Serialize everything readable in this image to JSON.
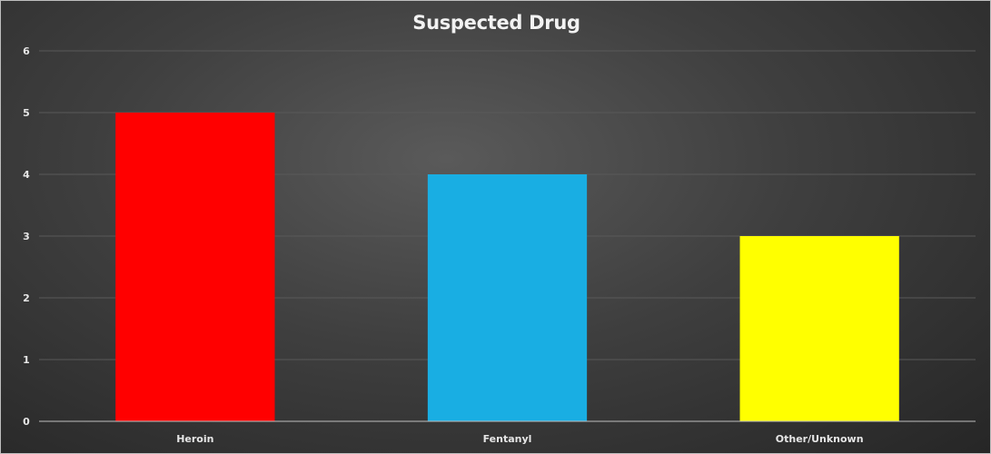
{
  "chart_data": {
    "type": "bar",
    "title": "Suspected Drug",
    "categories": [
      "Heroin",
      "Fentanyl",
      "Other/Unknown"
    ],
    "values": [
      5,
      4,
      3
    ],
    "colors": [
      "#ff0000",
      "#19aee3",
      "#ffff00"
    ],
    "ylim": [
      0,
      6
    ],
    "yticks": [
      0,
      1,
      2,
      3,
      4,
      5,
      6
    ],
    "grid": true,
    "legend": "none",
    "background": "#3f3f3f"
  }
}
